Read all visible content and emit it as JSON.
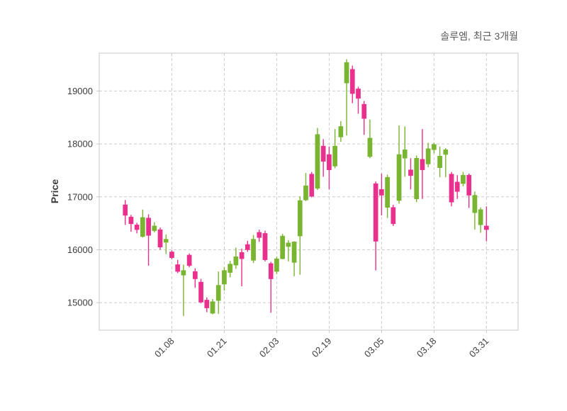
{
  "chart_data": {
    "type": "candlestick",
    "title": "솔루엠, 최근 3개월",
    "ylabel": "Price",
    "grid": "dashed",
    "legend_position": "none",
    "ylim": [
      14480,
      19715
    ],
    "yticks": [
      15000,
      16000,
      17000,
      18000,
      19000
    ],
    "xtick_indices": [
      8,
      17,
      26,
      35,
      44,
      53,
      62
    ],
    "xtick_labels": [
      "01.08",
      "01.21",
      "02.03",
      "02.19",
      "03.05",
      "03.18",
      "03.31"
    ],
    "up_color": "#79b530",
    "down_color": "#e9308d",
    "grid_color": "#cccccc",
    "spine_color": "#c8c8c8",
    "tick_label_color": "#3d3d3d",
    "title_color": "#595959",
    "ohlc_order": [
      "open",
      "high",
      "low",
      "close"
    ],
    "candles": [
      [
        16850,
        16940,
        16470,
        16650
      ],
      [
        16620,
        16660,
        16340,
        16490
      ],
      [
        16470,
        16510,
        16310,
        16380
      ],
      [
        16250,
        16760,
        16230,
        16610
      ],
      [
        16600,
        16670,
        15700,
        16270
      ],
      [
        16360,
        16520,
        16330,
        16450
      ],
      [
        16380,
        16420,
        16000,
        16050
      ],
      [
        16140,
        16290,
        15920,
        16200
      ],
      [
        15960,
        15990,
        15820,
        15850
      ],
      [
        15720,
        15810,
        15560,
        15590
      ],
      [
        15520,
        15720,
        14750,
        15610
      ],
      [
        15900,
        15930,
        15670,
        15700
      ],
      [
        15590,
        15650,
        15280,
        15450
      ],
      [
        15390,
        15450,
        14990,
        15010
      ],
      [
        15050,
        15100,
        14820,
        14900
      ],
      [
        14800,
        15070,
        14780,
        15020
      ],
      [
        15040,
        15590,
        14790,
        15330
      ],
      [
        15350,
        15670,
        15230,
        15610
      ],
      [
        15570,
        15790,
        15480,
        15730
      ],
      [
        15710,
        16040,
        15640,
        15870
      ],
      [
        15950,
        16020,
        15310,
        15830
      ],
      [
        16100,
        16170,
        15960,
        16000
      ],
      [
        15800,
        16280,
        15750,
        16200
      ],
      [
        16330,
        16380,
        16150,
        16230
      ],
      [
        16310,
        16360,
        15780,
        15810
      ],
      [
        15740,
        15770,
        14810,
        15450
      ],
      [
        15590,
        15870,
        15540,
        15830
      ],
      [
        15830,
        16300,
        15820,
        16260
      ],
      [
        16060,
        16180,
        15780,
        16130
      ],
      [
        15760,
        16160,
        15500,
        16150
      ],
      [
        16260,
        17010,
        15530,
        16930
      ],
      [
        16940,
        17450,
        16920,
        17210
      ],
      [
        17430,
        17470,
        16990,
        17010
      ],
      [
        17160,
        18300,
        17130,
        18180
      ],
      [
        17960,
        18090,
        17380,
        17670
      ],
      [
        17800,
        17950,
        17140,
        17510
      ],
      [
        17580,
        18280,
        17540,
        17960
      ],
      [
        18130,
        18430,
        18040,
        18330
      ],
      [
        19150,
        19600,
        18160,
        19540
      ],
      [
        19410,
        19480,
        18770,
        18950
      ],
      [
        19040,
        19080,
        18570,
        18860
      ],
      [
        18750,
        18810,
        18170,
        18480
      ],
      [
        17760,
        18460,
        17730,
        18110
      ],
      [
        17250,
        17290,
        15610,
        16160
      ],
      [
        17140,
        17440,
        16650,
        17030
      ],
      [
        16800,
        17420,
        16600,
        17370
      ],
      [
        16800,
        16850,
        16450,
        16490
      ],
      [
        16930,
        18350,
        16870,
        17800
      ],
      [
        17730,
        18330,
        17380,
        17890
      ],
      [
        17510,
        17730,
        17140,
        17400
      ],
      [
        16960,
        17780,
        16900,
        17730
      ],
      [
        17710,
        18280,
        16960,
        17510
      ],
      [
        17620,
        18020,
        17560,
        17910
      ],
      [
        17890,
        18020,
        17820,
        17990
      ],
      [
        17550,
        17950,
        17370,
        17770
      ],
      [
        17800,
        17920,
        17370,
        17890
      ],
      [
        17430,
        17470,
        16820,
        16900
      ],
      [
        17280,
        17410,
        16960,
        17100
      ],
      [
        17250,
        17470,
        17200,
        17410
      ],
      [
        17410,
        17440,
        16790,
        17030
      ],
      [
        16700,
        17100,
        16380,
        17030
      ],
      [
        16470,
        16800,
        16320,
        16760
      ],
      [
        16450,
        16820,
        16160,
        16380
      ]
    ]
  }
}
